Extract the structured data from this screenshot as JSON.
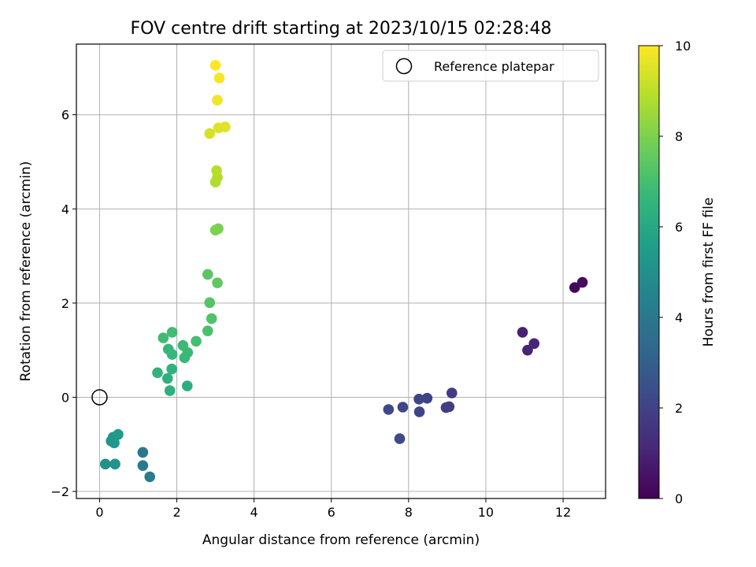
{
  "chart_data": {
    "type": "scatter",
    "title": "FOV centre drift starting at 2023/10/15 02:28:48",
    "xlabel": "Angular distance from reference (arcmin)",
    "ylabel": "Rotation from reference (arcmin)",
    "xlim": [
      -0.6,
      13.1
    ],
    "ylim": [
      -2.15,
      7.5
    ],
    "xticks": [
      0,
      2,
      4,
      6,
      8,
      10,
      12
    ],
    "yticks": [
      -2,
      0,
      2,
      4,
      6
    ],
    "grid": true,
    "legend": {
      "placement": "top-right",
      "entries": [
        "Reference platepar"
      ]
    },
    "reference_point": {
      "x": 0,
      "y": 0
    },
    "colorbar": {
      "label": "Hours from first FF file",
      "range": [
        0,
        10
      ],
      "ticks": [
        0,
        2,
        4,
        6,
        8,
        10
      ],
      "colormap": "viridis"
    },
    "colors": {
      "viridis": [
        "#440154",
        "#482878",
        "#3e4989",
        "#31688e",
        "#26828e",
        "#1f9e89",
        "#35b779",
        "#6ece58",
        "#b5de2b",
        "#fde725"
      ]
    },
    "points": [
      {
        "x": 12.3,
        "y": 2.33,
        "c": 0.15
      },
      {
        "x": 12.5,
        "y": 2.44,
        "c": 0.3
      },
      {
        "x": 10.95,
        "y": 1.38,
        "c": 0.9
      },
      {
        "x": 11.08,
        "y": 1.0,
        "c": 1.0
      },
      {
        "x": 11.25,
        "y": 1.14,
        "c": 1.05
      },
      {
        "x": 9.12,
        "y": 0.09,
        "c": 1.8
      },
      {
        "x": 9.05,
        "y": -0.2,
        "c": 1.85
      },
      {
        "x": 8.97,
        "y": -0.22,
        "c": 1.9
      },
      {
        "x": 8.48,
        "y": -0.02,
        "c": 2.0
      },
      {
        "x": 8.27,
        "y": -0.04,
        "c": 2.05
      },
      {
        "x": 8.28,
        "y": -0.31,
        "c": 2.1
      },
      {
        "x": 7.85,
        "y": -0.21,
        "c": 2.15
      },
      {
        "x": 7.48,
        "y": -0.26,
        "c": 2.2
      },
      {
        "x": 7.77,
        "y": -0.88,
        "c": 2.25
      },
      {
        "x": 1.12,
        "y": -1.17,
        "c": 4.0
      },
      {
        "x": 1.12,
        "y": -1.45,
        "c": 4.1
      },
      {
        "x": 1.3,
        "y": -1.69,
        "c": 4.2
      },
      {
        "x": 0.15,
        "y": -1.42,
        "c": 5.0
      },
      {
        "x": 0.4,
        "y": -1.42,
        "c": 5.1
      },
      {
        "x": 0.35,
        "y": -0.85,
        "c": 5.2
      },
      {
        "x": 0.3,
        "y": -0.93,
        "c": 5.25
      },
      {
        "x": 0.38,
        "y": -0.97,
        "c": 5.3
      },
      {
        "x": 0.48,
        "y": -0.79,
        "c": 5.4
      },
      {
        "x": 2.27,
        "y": 0.24,
        "c": 6.2
      },
      {
        "x": 1.82,
        "y": 0.14,
        "c": 6.3
      },
      {
        "x": 1.76,
        "y": 0.4,
        "c": 6.35
      },
      {
        "x": 1.87,
        "y": 0.6,
        "c": 6.4
      },
      {
        "x": 1.5,
        "y": 0.52,
        "c": 6.5
      },
      {
        "x": 1.78,
        "y": 1.02,
        "c": 6.6
      },
      {
        "x": 1.88,
        "y": 0.91,
        "c": 6.65
      },
      {
        "x": 2.2,
        "y": 0.84,
        "c": 6.7
      },
      {
        "x": 2.28,
        "y": 0.95,
        "c": 6.75
      },
      {
        "x": 2.16,
        "y": 1.1,
        "c": 6.8
      },
      {
        "x": 1.65,
        "y": 1.26,
        "c": 6.85
      },
      {
        "x": 1.88,
        "y": 1.38,
        "c": 6.9
      },
      {
        "x": 2.5,
        "y": 1.19,
        "c": 7.0
      },
      {
        "x": 2.8,
        "y": 1.41,
        "c": 7.1
      },
      {
        "x": 2.9,
        "y": 1.67,
        "c": 7.2
      },
      {
        "x": 2.85,
        "y": 2.01,
        "c": 7.3
      },
      {
        "x": 2.8,
        "y": 2.61,
        "c": 7.4
      },
      {
        "x": 3.05,
        "y": 2.43,
        "c": 7.5
      },
      {
        "x": 3.07,
        "y": 3.58,
        "c": 7.9
      },
      {
        "x": 3.0,
        "y": 3.55,
        "c": 8.0
      },
      {
        "x": 3.0,
        "y": 4.57,
        "c": 8.8
      },
      {
        "x": 3.05,
        "y": 4.67,
        "c": 8.85
      },
      {
        "x": 3.03,
        "y": 4.81,
        "c": 8.9
      },
      {
        "x": 2.85,
        "y": 5.6,
        "c": 9.4
      },
      {
        "x": 3.08,
        "y": 5.72,
        "c": 9.5
      },
      {
        "x": 3.25,
        "y": 5.74,
        "c": 9.55
      },
      {
        "x": 3.05,
        "y": 6.31,
        "c": 9.8
      },
      {
        "x": 3.1,
        "y": 6.78,
        "c": 9.9
      },
      {
        "x": 3.0,
        "y": 7.05,
        "c": 10.0
      }
    ]
  }
}
